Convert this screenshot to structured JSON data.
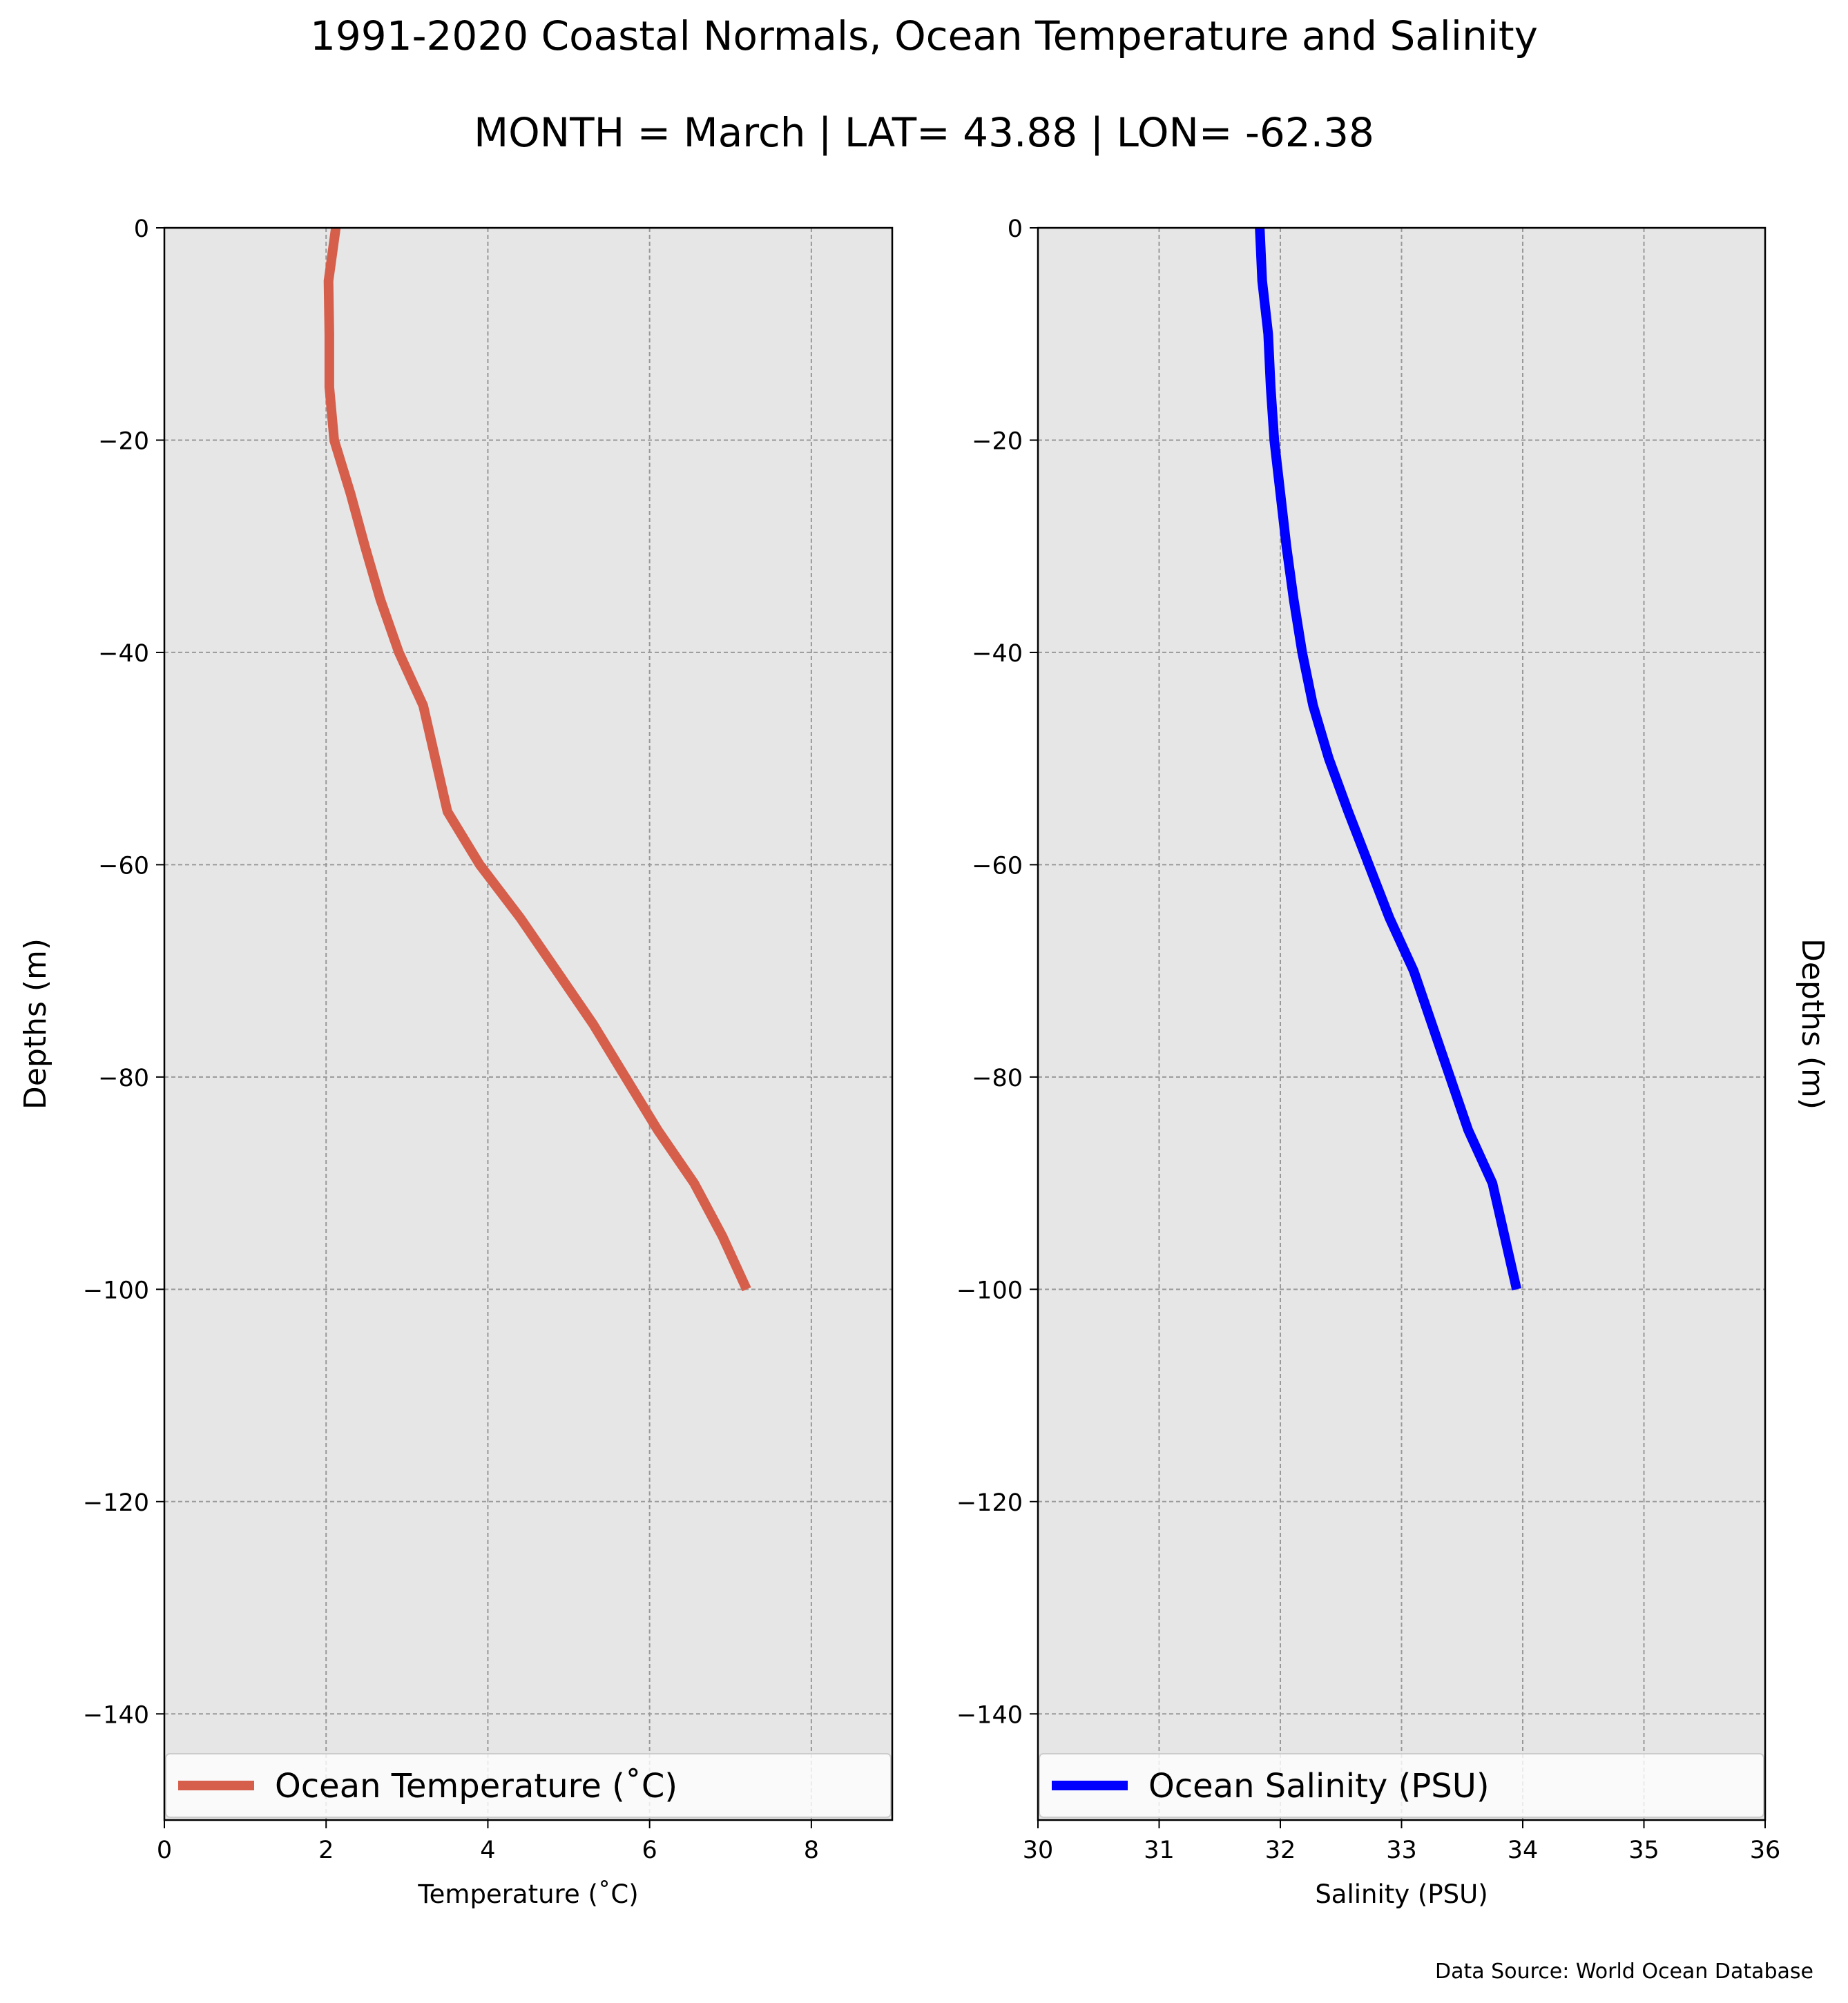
{
  "title": "1991-2020 Coastal Normals, Ocean Temperature and Salinity",
  "subtitle": "MONTH = March | LAT= 43.88 | LON= -62.38",
  "source": "Data Source: World Ocean Database",
  "colors": {
    "temperature": "#d65f4c",
    "salinity": "#0000ff",
    "panel_bg": "#e6e6e6",
    "grid": "#999999"
  },
  "chart_data": [
    {
      "type": "line",
      "xlabel": "Temperature ($^\\circ$C)",
      "xlabel_display": "Temperature (˚C)",
      "ylabel": "Depths (m)",
      "xlim": [
        0,
        9
      ],
      "ylim": [
        -150,
        0
      ],
      "xticks": [
        0,
        2,
        4,
        6,
        8
      ],
      "yticks": [
        0,
        -20,
        -40,
        -60,
        -80,
        -100,
        -120,
        -140
      ],
      "grid": true,
      "legend_loc": "lower center",
      "series": [
        {
          "name": "Ocean Temperature (˚C)",
          "color": "#d65f4c",
          "x": [
            2.12,
            2.03,
            2.04,
            2.04,
            2.1,
            2.3,
            2.48,
            2.67,
            2.9,
            3.2,
            3.5,
            3.9,
            4.4,
            4.85,
            5.3,
            5.7,
            6.1,
            6.55,
            6.9,
            7.2
          ],
          "y": [
            0,
            -5,
            -10,
            -15,
            -20,
            -25,
            -30,
            -35,
            -40,
            -45,
            -55,
            -60,
            -65,
            -70,
            -75,
            -80,
            -85,
            -90,
            -95,
            -100
          ]
        }
      ]
    },
    {
      "type": "line",
      "xlabel": "Salinity (PSU)",
      "ylabel": "Depths (m)",
      "xlim": [
        30,
        36
      ],
      "ylim": [
        -150,
        0
      ],
      "xticks": [
        30,
        31,
        32,
        33,
        34,
        35,
        36
      ],
      "yticks": [
        0,
        -20,
        -40,
        -60,
        -80,
        -100,
        -120,
        -140
      ],
      "grid": true,
      "legend_loc": "lower center",
      "series": [
        {
          "name": "Ocean Salinity (PSU)",
          "color": "#0000ff",
          "x": [
            31.83,
            31.85,
            31.9,
            31.92,
            31.95,
            32.0,
            32.05,
            32.11,
            32.18,
            32.27,
            32.4,
            32.56,
            32.73,
            32.9,
            33.1,
            33.25,
            33.4,
            33.55,
            33.75,
            33.85,
            33.95
          ],
          "y": [
            0,
            -5,
            -10,
            -15,
            -20,
            -25,
            -30,
            -35,
            -40,
            -45,
            -50,
            -55,
            -60,
            -65,
            -70,
            -75,
            -80,
            -85,
            -90,
            -95,
            -100
          ]
        }
      ]
    }
  ]
}
